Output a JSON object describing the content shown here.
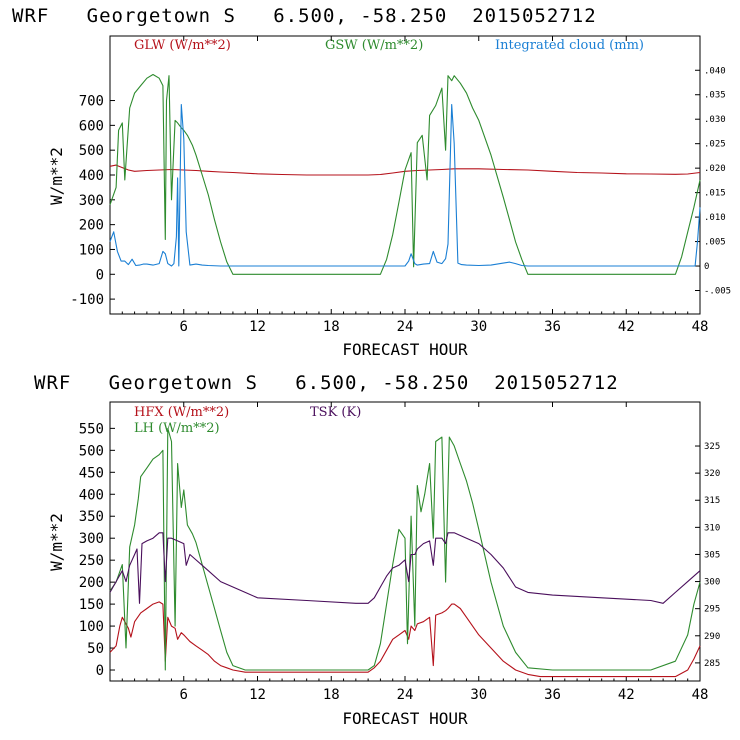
{
  "chart_data": [
    {
      "type": "line",
      "title": "WRF   Georgetown S   6.500, -58.250  2015052712",
      "xlabel": "FORECAST HOUR",
      "ylabel": "W/m**2",
      "xlim": [
        0,
        48
      ],
      "ylim": [
        -160,
        960
      ],
      "x_ticks": [
        6,
        12,
        18,
        24,
        30,
        36,
        42,
        48
      ],
      "y_ticks": [
        -100,
        0,
        100,
        200,
        300,
        400,
        500,
        600,
        700
      ],
      "y2_ticks": [
        "-.005",
        "0",
        ".005",
        ".010",
        ".015",
        ".020",
        ".025",
        ".030",
        ".035",
        ".040"
      ],
      "y2_values": [
        -0.005,
        0,
        0.005,
        0.01,
        0.015,
        0.02,
        0.025,
        0.03,
        0.035,
        0.04
      ],
      "y2lim": [
        -0.0098,
        0.047
      ],
      "grid": false,
      "legend_position": "top",
      "series": [
        {
          "name": "GLW (W/m**2)",
          "color": "#b5121b",
          "axis": "left",
          "x": [
            0,
            0.5,
            1,
            1.5,
            2,
            3,
            4,
            5,
            6,
            7,
            8,
            9,
            10,
            12,
            14,
            16,
            18,
            20,
            21,
            22,
            23,
            24,
            25,
            26,
            27,
            28,
            29,
            30,
            32,
            34,
            36,
            38,
            40,
            42,
            44,
            46,
            47,
            48
          ],
          "values": [
            435,
            440,
            430,
            420,
            415,
            418,
            420,
            422,
            420,
            418,
            415,
            412,
            410,
            405,
            402,
            400,
            400,
            400,
            400,
            402,
            408,
            415,
            418,
            420,
            422,
            425,
            425,
            425,
            422,
            420,
            415,
            410,
            408,
            405,
            404,
            403,
            404,
            410
          ]
        },
        {
          "name": "GSW (W/m**2)",
          "color": "#2e8b2e",
          "axis": "left",
          "x": [
            0,
            0.5,
            0.7,
            1,
            1.2,
            1.6,
            2,
            2.5,
            3,
            3.5,
            4,
            4.3,
            4.5,
            4.6,
            4.8,
            5,
            5.3,
            5.5,
            5.8,
            6,
            6.3,
            6.7,
            7,
            7.5,
            8,
            8.5,
            9,
            9.5,
            10,
            22,
            22.5,
            23,
            23.5,
            24,
            24.5,
            24.7,
            25,
            25.4,
            25.8,
            26,
            26.5,
            27,
            27.3,
            27.5,
            27.8,
            28,
            28.5,
            29,
            29.5,
            30,
            31,
            32,
            32.5,
            33,
            33.5,
            34,
            46,
            46.5,
            47,
            47.5,
            48
          ],
          "values": [
            280,
            350,
            580,
            610,
            380,
            670,
            730,
            760,
            790,
            805,
            790,
            760,
            140,
            700,
            800,
            300,
            620,
            610,
            590,
            580,
            560,
            520,
            480,
            400,
            320,
            220,
            130,
            50,
            0,
            0,
            60,
            160,
            290,
            420,
            490,
            30,
            530,
            560,
            380,
            640,
            680,
            750,
            500,
            800,
            780,
            800,
            770,
            730,
            670,
            620,
            480,
            310,
            220,
            130,
            60,
            0,
            0,
            70,
            170,
            270,
            380
          ]
        },
        {
          "name": "Integrated cloud (mm)",
          "color": "#1a7fd4",
          "axis": "right",
          "x": [
            0,
            0.3,
            0.6,
            0.9,
            1.2,
            1.5,
            1.8,
            2.1,
            2.4,
            2.7,
            3,
            3.5,
            4,
            4.3,
            4.5,
            4.7,
            5,
            5.2,
            5.4,
            5.5,
            5.6,
            5.8,
            6,
            6.2,
            6.5,
            7,
            7.5,
            8,
            9,
            10,
            12,
            16,
            20,
            22,
            23,
            24,
            24.3,
            24.5,
            24.8,
            25,
            25.5,
            26,
            26.3,
            26.6,
            27,
            27.3,
            27.5,
            27.8,
            28,
            28.3,
            28.6,
            29,
            30,
            31,
            32,
            32.5,
            33,
            33.5,
            34,
            36,
            40,
            44,
            46,
            47,
            47.6,
            47.8,
            48
          ],
          "values": [
            0.005,
            0.007,
            0.003,
            0.001,
            0.001,
            0.0003,
            0.0014,
            0.0001,
            0.0002,
            0.0004,
            0.0004,
            0.0002,
            0.0005,
            0.003,
            0.0025,
            0.0005,
            0.0,
            0.0005,
            0.006,
            0.018,
            0.0,
            0.033,
            0.026,
            0.007,
            0.0002,
            0.0004,
            0.0002,
            0.0001,
            0.0,
            0.0,
            0.0,
            0.0,
            0.0,
            0.0,
            0.0,
            0.0,
            0.001,
            0.0025,
            0.0005,
            0.0002,
            0.0004,
            0.0005,
            0.003,
            0.0008,
            0.0005,
            0.0015,
            0.0045,
            0.033,
            0.025,
            0.0006,
            0.0003,
            0.0002,
            0.0001,
            0.0002,
            0.0006,
            0.0008,
            0.0005,
            0.0001,
            0.0,
            0.0,
            0.0,
            0.0,
            0.0,
            0.0,
            0.0,
            0.005,
            0.012
          ]
        }
      ]
    },
    {
      "type": "line",
      "title": "WRF   Georgetown S   6.500, -58.250  2015052712",
      "xlabel": "FORECAST HOUR",
      "ylabel": "W/m**2",
      "xlim": [
        0,
        48
      ],
      "ylim": [
        -25,
        610
      ],
      "x_ticks": [
        6,
        12,
        18,
        24,
        30,
        36,
        42,
        48
      ],
      "y_ticks": [
        0,
        50,
        100,
        150,
        200,
        250,
        300,
        350,
        400,
        450,
        500,
        550
      ],
      "y2_ticks": [
        "285",
        "290",
        "295",
        "300",
        "305",
        "310",
        "315",
        "320",
        "325"
      ],
      "y2_values": [
        285,
        290,
        295,
        300,
        305,
        310,
        315,
        320,
        325
      ],
      "y2lim": [
        281.66,
        333.12
      ],
      "grid": false,
      "legend_position": "top",
      "series": [
        {
          "name": "HFX (W/m**2)",
          "color": "#b5121b",
          "axis": "left",
          "x": [
            0,
            0.5,
            0.8,
            1,
            1.2,
            1.5,
            1.7,
            2,
            2.5,
            3,
            3.5,
            4,
            4.3,
            4.5,
            4.7,
            5,
            5.3,
            5.5,
            5.8,
            6,
            6.5,
            7,
            7.5,
            8,
            8.5,
            9,
            9.5,
            10,
            11,
            14,
            18,
            21,
            21.5,
            22,
            22.5,
            23,
            23.5,
            24,
            24.3,
            24.5,
            24.8,
            25,
            25.5,
            26,
            26.3,
            26.5,
            27,
            27.3,
            27.5,
            27.8,
            28,
            28.5,
            29,
            29.5,
            30,
            31,
            32,
            33,
            34,
            35,
            36,
            40,
            44,
            46,
            47,
            47.5,
            48
          ],
          "values": [
            40,
            55,
            100,
            120,
            110,
            95,
            75,
            110,
            130,
            140,
            150,
            155,
            150,
            20,
            120,
            100,
            95,
            70,
            85,
            80,
            65,
            55,
            45,
            35,
            20,
            10,
            5,
            0,
            -5,
            -5,
            -5,
            -5,
            5,
            20,
            45,
            70,
            80,
            90,
            70,
            100,
            90,
            105,
            110,
            120,
            10,
            125,
            130,
            135,
            140,
            150,
            150,
            140,
            120,
            100,
            80,
            50,
            20,
            0,
            -10,
            -15,
            -15,
            -15,
            -15,
            -15,
            0,
            25,
            55
          ]
        },
        {
          "name": "LH (W/m**2)",
          "color": "#2e8b2e",
          "axis": "left",
          "x": [
            0,
            0.5,
            1,
            1.3,
            1.6,
            2,
            2.3,
            2.5,
            3,
            3.5,
            4,
            4.3,
            4.5,
            4.7,
            5,
            5.3,
            5.5,
            5.8,
            6,
            6.3,
            6.7,
            7,
            7.5,
            8,
            8.5,
            9,
            9.5,
            10,
            11,
            14,
            18,
            21,
            21.5,
            22,
            22.5,
            23,
            23.5,
            24,
            24.2,
            24.5,
            24.8,
            25,
            25.3,
            25.6,
            26,
            26.3,
            26.5,
            27,
            27.3,
            27.6,
            28,
            28.5,
            29,
            29.5,
            30,
            31,
            32,
            33,
            34,
            36,
            40,
            44,
            46,
            47,
            47.5,
            48
          ],
          "values": [
            180,
            200,
            240,
            50,
            280,
            330,
            390,
            440,
            460,
            480,
            490,
            500,
            0,
            550,
            520,
            100,
            470,
            370,
            410,
            330,
            310,
            290,
            240,
            190,
            140,
            90,
            40,
            10,
            0,
            0,
            0,
            0,
            10,
            60,
            150,
            240,
            320,
            300,
            60,
            350,
            100,
            420,
            360,
            400,
            470,
            300,
            520,
            530,
            200,
            530,
            510,
            470,
            430,
            380,
            320,
            200,
            100,
            40,
            5,
            0,
            0,
            0,
            20,
            80,
            150,
            200
          ]
        },
        {
          "name": "TSK (K)",
          "color": "#4a0f5c",
          "axis": "right",
          "x": [
            0,
            0.5,
            1,
            1.3,
            1.6,
            2,
            2.2,
            2.4,
            2.6,
            3,
            3.5,
            4,
            4.3,
            4.5,
            4.7,
            5,
            5.5,
            6,
            6.2,
            6.5,
            7,
            7.5,
            8,
            9,
            10,
            11,
            12,
            16,
            20,
            21,
            21.5,
            22,
            22.5,
            23,
            23.5,
            24,
            24.3,
            24.5,
            24.8,
            25,
            25.5,
            26,
            26.3,
            26.5,
            27,
            27.3,
            27.5,
            28,
            28.5,
            29,
            30,
            31,
            32,
            33,
            34,
            36,
            40,
            44,
            45,
            46,
            47,
            48
          ],
          "values": [
            298,
            300,
            302,
            300,
            303,
            305,
            306,
            296,
            307,
            307.5,
            308,
            309,
            309,
            300,
            308,
            308,
            307.5,
            307,
            303,
            305,
            304,
            303,
            302,
            300,
            299,
            298,
            297,
            296.5,
            296,
            296,
            297,
            299,
            301,
            302.5,
            303,
            304,
            300,
            305,
            305,
            306,
            307,
            307.5,
            303,
            308,
            308,
            307,
            309,
            309,
            308.5,
            308,
            307,
            305,
            302.5,
            299,
            298,
            297.5,
            297,
            296.5,
            296,
            298,
            300,
            302
          ]
        }
      ]
    }
  ]
}
